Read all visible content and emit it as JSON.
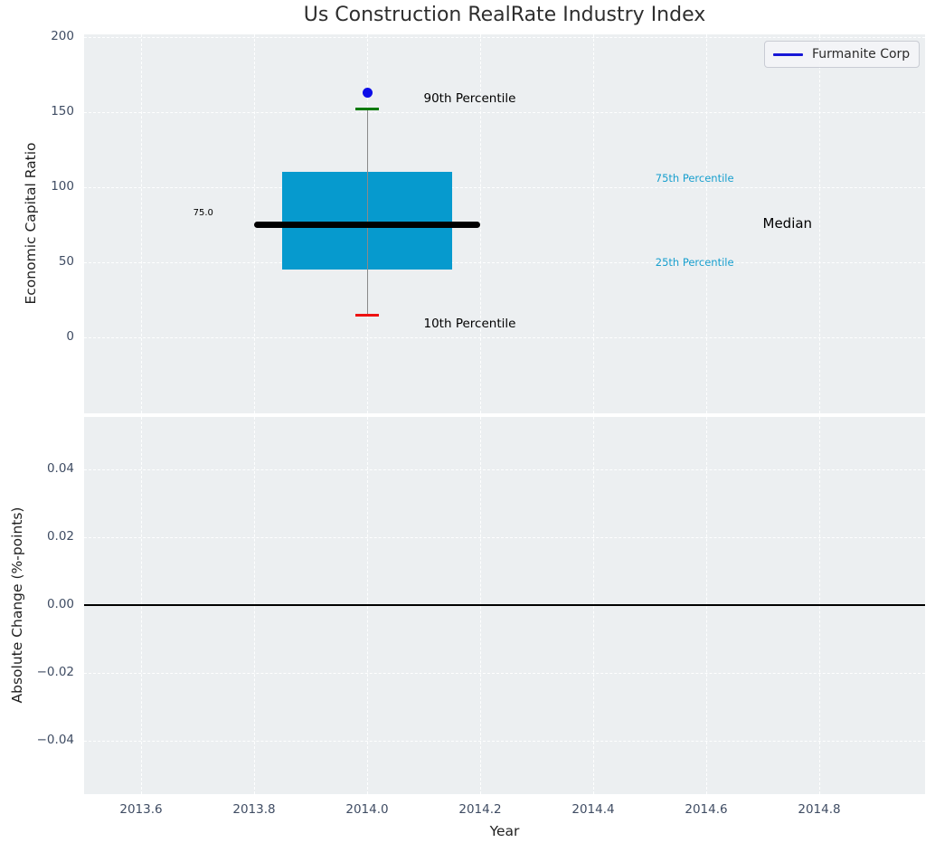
{
  "title": "Us Construction RealRate Industry Index",
  "legend": {
    "label": "Furmanite Corp"
  },
  "colors": {
    "figure_bg": "#ffffff",
    "plot_bg": "#eceff1",
    "grid": "#ffffff",
    "box_fill": "#069ace",
    "median_line": "#000000",
    "whisker": "#8a8a8a",
    "p90_cap": "#007a00",
    "p10_cap": "#ee1111",
    "company_point": "#0d0de8",
    "percentile_label": "#189fce",
    "zero_line": "#000000",
    "tick_label": "#3f4c63",
    "legend_line": "#1717d6"
  },
  "chart_data": [
    {
      "type": "box",
      "title": "Us Construction RealRate Industry Index",
      "ylabel": "Economic Capital Ratio",
      "ylim": [
        -51,
        202
      ],
      "grid": "white dashed",
      "legend_position": "upper right",
      "yticks": [
        {
          "v": 200,
          "label": "200"
        },
        {
          "v": 150,
          "label": "150"
        },
        {
          "v": 100,
          "label": "100"
        },
        {
          "v": 50,
          "label": "50"
        },
        {
          "v": 0,
          "label": "0"
        }
      ],
      "box": {
        "x": 2014,
        "p10": 15,
        "p25": 45,
        "median": 75,
        "p75": 110,
        "p90": 152,
        "box_halfwidth": 0.15,
        "median_halfwidth": 0.2
      },
      "median_value_text": "75.0",
      "company_point": {
        "name": "Furmanite Corp",
        "x": 2014,
        "y": 163
      },
      "annotations": [
        {
          "id": "p90-label",
          "text": "90th Percentile",
          "x": 2014.1,
          "y": 158,
          "color": "#000000",
          "size": 13.5,
          "align": "left"
        },
        {
          "id": "p10-label",
          "text": "10th Percentile",
          "x": 2014.1,
          "y": 8,
          "color": "#000000",
          "size": 13.5,
          "align": "left"
        },
        {
          "id": "median-value-label",
          "text": "75.0",
          "x": 2013.71,
          "y": 82,
          "color": "#000000",
          "size": 10,
          "align": "center"
        },
        {
          "id": "p75-label",
          "text": "75th Percentile",
          "x": 2014.51,
          "y": 105,
          "color": "#189fce",
          "size": 11.5,
          "align": "left"
        },
        {
          "id": "p25-label",
          "text": "25th Percentile",
          "x": 2014.51,
          "y": 49,
          "color": "#189fce",
          "size": 11.5,
          "align": "left"
        },
        {
          "id": "median-label",
          "text": "Median",
          "x": 2014.7,
          "y": 75,
          "color": "#000000",
          "size": 15,
          "align": "left"
        }
      ]
    },
    {
      "type": "line",
      "ylabel": "Absolute Change (%-points)",
      "xlabel": "Year",
      "ylim": [
        -0.055,
        0.055
      ],
      "xlim": [
        2013.5,
        2014.99
      ],
      "grid": "white dashed",
      "zero_line": 0.0,
      "yticks": [
        {
          "v": 0.04,
          "label": "0.04"
        },
        {
          "v": 0.02,
          "label": "0.02"
        },
        {
          "v": 0,
          "label": "0.00"
        },
        {
          "v": -0.02,
          "label": "−0.02"
        },
        {
          "v": -0.04,
          "label": "−0.04"
        }
      ],
      "xticks": [
        {
          "v": 2013.6,
          "label": "2013.6"
        },
        {
          "v": 2013.8,
          "label": "2013.8"
        },
        {
          "v": 2014,
          "label": "2014.0"
        },
        {
          "v": 2014.2,
          "label": "2014.2"
        },
        {
          "v": 2014.4,
          "label": "2014.4"
        },
        {
          "v": 2014.6,
          "label": "2014.6"
        },
        {
          "v": 2014.8,
          "label": "2014.8"
        }
      ],
      "series": []
    }
  ]
}
